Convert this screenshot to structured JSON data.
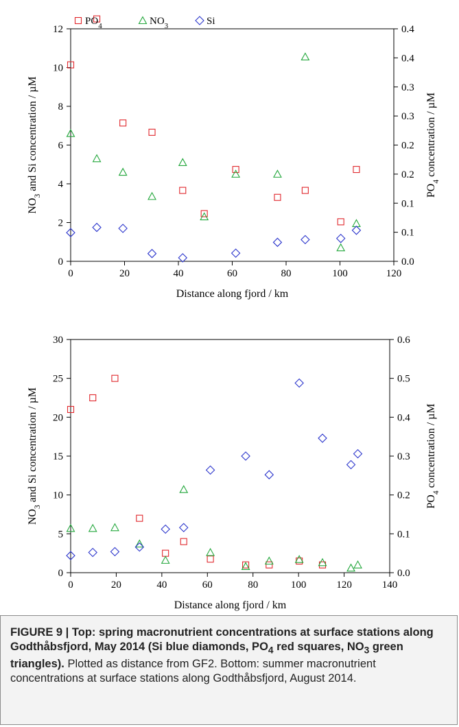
{
  "chart_data": [
    {
      "type": "scatter",
      "xlabel": "Distance along fjord / km",
      "ylabel_left": "NO3 and Si concentration / µM",
      "ylabel_right": "PO4 concentration / µM",
      "xlim": [
        0,
        120
      ],
      "ylim_left": [
        0,
        12
      ],
      "ylim_right": [
        0,
        0.4
      ],
      "x_ticks": [
        "0",
        "20",
        "40",
        "60",
        "80",
        "100",
        "120"
      ],
      "y_left_ticks": [
        "0",
        "2",
        "4",
        "6",
        "8",
        "10",
        "12"
      ],
      "y_right_ticks": [
        "0.0",
        "0.1",
        "0.1",
        "0.2",
        "0.2",
        "0.3",
        "0.3",
        "0.4",
        "0.4"
      ],
      "legend": [
        "PO4",
        "NO3",
        "Si"
      ],
      "series": [
        {
          "name": "PO4",
          "axis": "right",
          "color": "#e0262b",
          "marker": "square",
          "x": [
            0,
            9.7,
            19.4,
            30.2,
            41.6,
            49.6,
            61.3,
            76.8,
            87.1,
            100.3,
            106.1
          ],
          "y": [
            0.338,
            0.417,
            0.238,
            0.222,
            0.122,
            0.082,
            0.158,
            0.11,
            0.122,
            0.068,
            0.158
          ]
        },
        {
          "name": "NO3",
          "axis": "left",
          "color": "#21a63a",
          "marker": "triangle",
          "x": [
            0,
            9.7,
            19.4,
            30.2,
            41.6,
            49.6,
            61.3,
            76.8,
            87.1,
            100.3,
            106.1
          ],
          "y": [
            6.6,
            5.3,
            4.6,
            3.35,
            5.1,
            2.3,
            4.5,
            4.5,
            10.55,
            0.7,
            1.95
          ]
        },
        {
          "name": "Si",
          "axis": "left",
          "color": "#2b35cc",
          "marker": "diamond",
          "x": [
            0,
            9.7,
            19.4,
            30.2,
            41.6,
            61.3,
            76.8,
            87.1,
            100.3,
            106.1
          ],
          "y": [
            1.48,
            1.75,
            1.7,
            0.4,
            0.18,
            0.42,
            0.98,
            1.12,
            1.18,
            1.6
          ]
        }
      ]
    },
    {
      "type": "scatter",
      "xlabel": "Distance along fjord / km",
      "ylabel_left": "NO3 and Si concentration / µM",
      "ylabel_right": "PO4 concentration / µM",
      "xlim": [
        0,
        140
      ],
      "ylim_left": [
        0,
        30
      ],
      "ylim_right": [
        0,
        0.6
      ],
      "x_ticks": [
        "0",
        "20",
        "40",
        "60",
        "80",
        "100",
        "120",
        "140"
      ],
      "y_left_ticks": [
        "0",
        "5",
        "10",
        "15",
        "20",
        "25",
        "30"
      ],
      "y_right_ticks": [
        "0.0",
        "0.1",
        "0.2",
        "0.3",
        "0.4",
        "0.5",
        "0.6"
      ],
      "series": [
        {
          "name": "PO4",
          "axis": "right",
          "color": "#e0262b",
          "marker": "square",
          "x": [
            0,
            9.7,
            19.4,
            30.2,
            41.6,
            49.6,
            61.3,
            76.8,
            87.1,
            100.3,
            110.5
          ],
          "y": [
            0.42,
            0.45,
            0.5,
            0.14,
            0.05,
            0.08,
            0.035,
            0.02,
            0.02,
            0.03,
            0.02
          ]
        },
        {
          "name": "NO3",
          "axis": "left",
          "color": "#21a63a",
          "marker": "triangle",
          "x": [
            0,
            9.7,
            19.4,
            30.2,
            41.6,
            49.6,
            61.3,
            76.8,
            87.1,
            100.3,
            110.5,
            123,
            126
          ],
          "y": [
            5.7,
            5.7,
            5.8,
            3.7,
            1.6,
            10.7,
            2.6,
            0.8,
            1.5,
            1.7,
            1.3,
            0.6,
            1.0
          ]
        },
        {
          "name": "Si",
          "axis": "left",
          "color": "#2b35cc",
          "marker": "diamond",
          "x": [
            0,
            9.7,
            19.4,
            30.2,
            41.6,
            49.6,
            61.3,
            76.8,
            87.1,
            100.3,
            110.5,
            123,
            126
          ],
          "y": [
            2.2,
            2.6,
            2.7,
            3.3,
            5.6,
            5.8,
            13.2,
            15.0,
            12.6,
            24.4,
            17.3,
            13.9,
            15.3
          ]
        }
      ]
    }
  ],
  "caption": {
    "bold_text": "FIGURE 9 | Top: spring macronutrient concentrations at surface stations along Godthåbsfjord, May 2014 (Si blue diamonds, PO",
    "bold_sub_1": "4",
    "bold_mid": " red squares, NO",
    "bold_sub_2": "3",
    "bold_end": " green triangles).",
    "normal_text": " Plotted as distance from GF2. Bottom: summer macronutrient concentrations at surface stations along Godthåbsfjord, August 2014."
  }
}
